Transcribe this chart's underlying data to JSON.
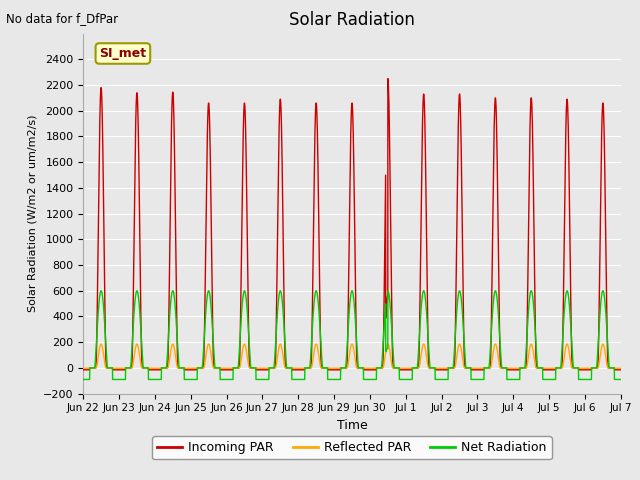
{
  "title": "Solar Radiation",
  "no_data_text": "No data for f_DfPar",
  "xlabel": "Time",
  "ylabel": "Solar Radiation (W/m2 or um/m2/s)",
  "ylim": [
    -200,
    2600
  ],
  "yticks": [
    -200,
    0,
    200,
    400,
    600,
    800,
    1000,
    1200,
    1400,
    1600,
    1800,
    2000,
    2200,
    2400
  ],
  "bg_color": "#e8e8e8",
  "plot_bg": "#e8e8e8",
  "grid_color": "white",
  "site_label": "SI_met",
  "site_box_color": "#ffffcc",
  "site_box_edge": "#999900",
  "n_days": 15,
  "points_per_day": 480,
  "incoming_peaks": [
    2180,
    2140,
    2145,
    2060,
    2060,
    2090,
    2060,
    2060,
    2250,
    2130,
    2130,
    2100,
    2100,
    2090,
    2060
  ],
  "incoming_color": "#cc0000",
  "reflected_color": "#ffaa00",
  "net_color": "#00cc00",
  "incoming_lw": 1.0,
  "reflected_lw": 1.0,
  "net_lw": 1.0,
  "tick_labels": [
    "Jun 22",
    "Jun 23",
    "Jun 24",
    "Jun 25",
    "Jun 26",
    "Jun 27",
    "Jun 28",
    "Jun 29",
    "Jun 30",
    "Jul 1",
    "Jul 2",
    "Jul 3",
    "Jul 4",
    "Jul 5",
    "Jul 6",
    "Jul 7"
  ]
}
